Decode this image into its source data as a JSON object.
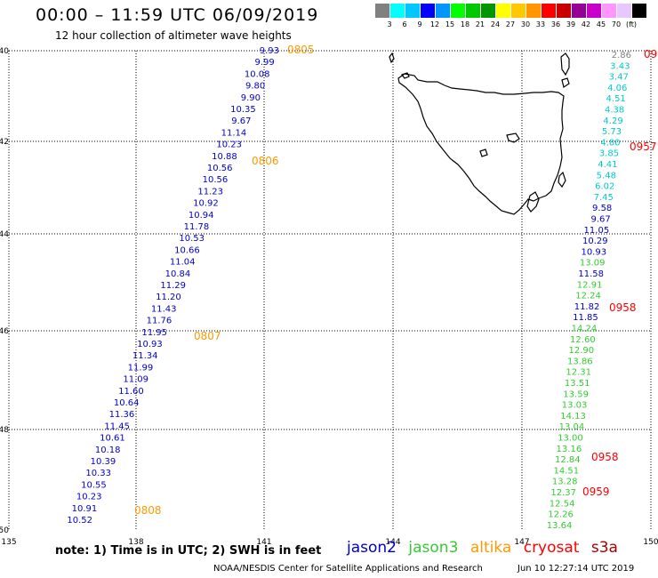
{
  "header": {
    "title": "00:00 – 11:59 UTC 06/09/2019",
    "subtitle": "12 hour collection of altimeter wave heights"
  },
  "legend": {
    "colors": [
      "#808080",
      "#00ffff",
      "#00c8ff",
      "#0000ff",
      "#0096ff",
      "#00ff00",
      "#00c800",
      "#009600",
      "#ffff00",
      "#ffc800",
      "#ff9600",
      "#ff0000",
      "#c80000",
      "#960096",
      "#c800c8",
      "#ff96ff",
      "#e6c8ff",
      "#000000"
    ],
    "labels": [
      "3",
      "6",
      "9",
      "12",
      "15",
      "18",
      "21",
      "24",
      "27",
      "30",
      "33",
      "36",
      "39",
      "42",
      "45",
      "70",
      "(ft)"
    ]
  },
  "axes": {
    "lat_labels": [
      "-40",
      "-42",
      "-44",
      "-46",
      "-48",
      "-50"
    ],
    "lon_labels": [
      "135",
      "138",
      "141",
      "144",
      "147",
      "150"
    ]
  },
  "colors": {
    "jason2": "#0000cc",
    "jason3": "#33cc33",
    "altika": "#ff9900",
    "cryosat": "#ff0000",
    "s3a": "#aa0000",
    "grey": "#808080",
    "cyan": "#00cccc"
  },
  "tracks": {
    "west_values": [
      "9.93",
      "9.99",
      "10.08",
      "9.80",
      "9.90",
      "10.35",
      "9.67",
      "11.14",
      "10.23",
      "10.88",
      "10.56",
      "10.56",
      "11.23",
      "10.92",
      "10.94",
      "11.78",
      "10.53",
      "10.66",
      "11.04",
      "10.84",
      "11.29",
      "11.20",
      "11.43",
      "11.76",
      "11.95",
      "10.93",
      "11.34",
      "11.99",
      "11.09",
      "11.60",
      "10.64",
      "11.36",
      "11.45",
      "10.61",
      "10.18",
      "10.39",
      "10.33",
      "10.55",
      "10.23",
      "10.91",
      "10.52"
    ],
    "west_times": [
      "0805",
      "0806",
      "0807",
      "0808"
    ],
    "east_values": [
      {
        "v": "2.86",
        "c": "grey"
      },
      {
        "v": "3.43",
        "c": "cyan"
      },
      {
        "v": "3.47",
        "c": "cyan"
      },
      {
        "v": "4.06",
        "c": "cyan"
      },
      {
        "v": "4.51",
        "c": "cyan"
      },
      {
        "v": "4.38",
        "c": "cyan"
      },
      {
        "v": "4.29",
        "c": "cyan"
      },
      {
        "v": "5.73",
        "c": "cyan"
      },
      {
        "v": "4.80",
        "c": "cyan"
      },
      {
        "v": "3.85",
        "c": "cyan"
      },
      {
        "v": "4.41",
        "c": "cyan"
      },
      {
        "v": "5.48",
        "c": "cyan"
      },
      {
        "v": "6.02",
        "c": "cyan"
      },
      {
        "v": "7.45",
        "c": "cyan"
      },
      {
        "v": "9.58",
        "c": "jason2"
      },
      {
        "v": "9.67",
        "c": "jason2"
      },
      {
        "v": "11.05",
        "c": "jason2"
      },
      {
        "v": "10.29",
        "c": "jason2"
      },
      {
        "v": "10.93",
        "c": "jason2"
      },
      {
        "v": "13.09",
        "c": "jason3"
      },
      {
        "v": "11.58",
        "c": "jason2"
      },
      {
        "v": "12.91",
        "c": "jason3"
      },
      {
        "v": "12.24",
        "c": "jason3"
      },
      {
        "v": "11.82",
        "c": "jason2"
      },
      {
        "v": "11.85",
        "c": "jason2"
      },
      {
        "v": "14.24",
        "c": "jason3"
      },
      {
        "v": "12.60",
        "c": "jason3"
      },
      {
        "v": "12.90",
        "c": "jason3"
      },
      {
        "v": "13.86",
        "c": "jason3"
      },
      {
        "v": "12.31",
        "c": "jason3"
      },
      {
        "v": "13.51",
        "c": "jason3"
      },
      {
        "v": "13.59",
        "c": "jason3"
      },
      {
        "v": "13.03",
        "c": "jason3"
      },
      {
        "v": "14.13",
        "c": "jason3"
      },
      {
        "v": "13.04",
        "c": "jason3"
      },
      {
        "v": "13.00",
        "c": "jason3"
      },
      {
        "v": "13.16",
        "c": "jason3"
      },
      {
        "v": "12.84",
        "c": "jason3"
      },
      {
        "v": "14.51",
        "c": "jason3"
      },
      {
        "v": "13.28",
        "c": "jason3"
      },
      {
        "v": "12.37",
        "c": "jason3"
      },
      {
        "v": "12.54",
        "c": "jason3"
      },
      {
        "v": "12.26",
        "c": "jason3"
      },
      {
        "v": "13.64",
        "c": "jason3"
      }
    ],
    "east_times": [
      "09",
      "0957",
      "0958",
      "0958",
      "0959"
    ]
  },
  "footer": {
    "note": "note:  1) Time is in UTC; 2) SWH is in feet",
    "sats": [
      "jason2",
      "jason3",
      "altika",
      "cryosat",
      "s3a"
    ],
    "credit": "NOAA/NESDIS Center for Satellite Applications and Research",
    "stamp": "Jun 10 12:27:14 UTC 2019"
  }
}
